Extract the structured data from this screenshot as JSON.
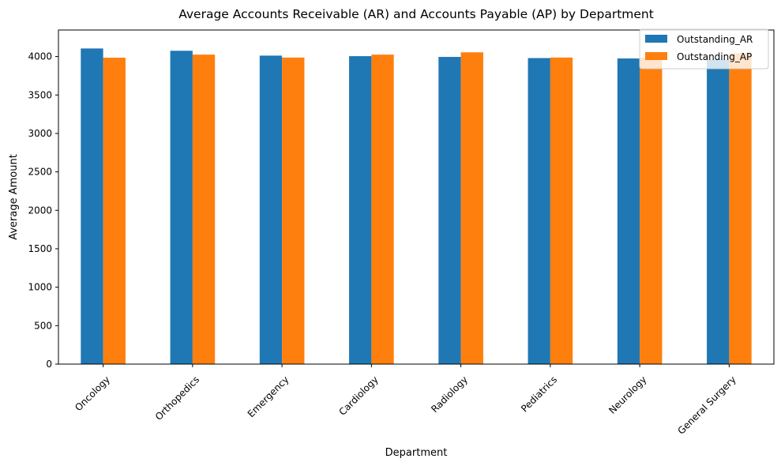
{
  "chart_data": {
    "type": "bar",
    "title": "Average Accounts Receivable (AR) and Accounts Payable (AP) by Department",
    "xlabel": "Department",
    "ylabel": "Average Amount",
    "categories": [
      "Oncology",
      "Orthopedics",
      "Emergency",
      "Cardiology",
      "Radiology",
      "Pediatrics",
      "Neurology",
      "General Surgery"
    ],
    "series": [
      {
        "name": "Outstanding_AR",
        "color": "#1f77b4",
        "values": [
          4105,
          4075,
          4012,
          4005,
          3995,
          3980,
          3975,
          3960
        ]
      },
      {
        "name": "Outstanding_AP",
        "color": "#ff7f0e",
        "values": [
          3985,
          4025,
          3987,
          4025,
          4055,
          3987,
          3985,
          4045
        ]
      }
    ],
    "ylim": [
      0,
      4345
    ],
    "yticks": [
      0,
      500,
      1000,
      1500,
      2000,
      2500,
      3000,
      3500,
      4000
    ],
    "grid": false,
    "legend_position": "top-right",
    "tick_rotation_deg": 45
  }
}
